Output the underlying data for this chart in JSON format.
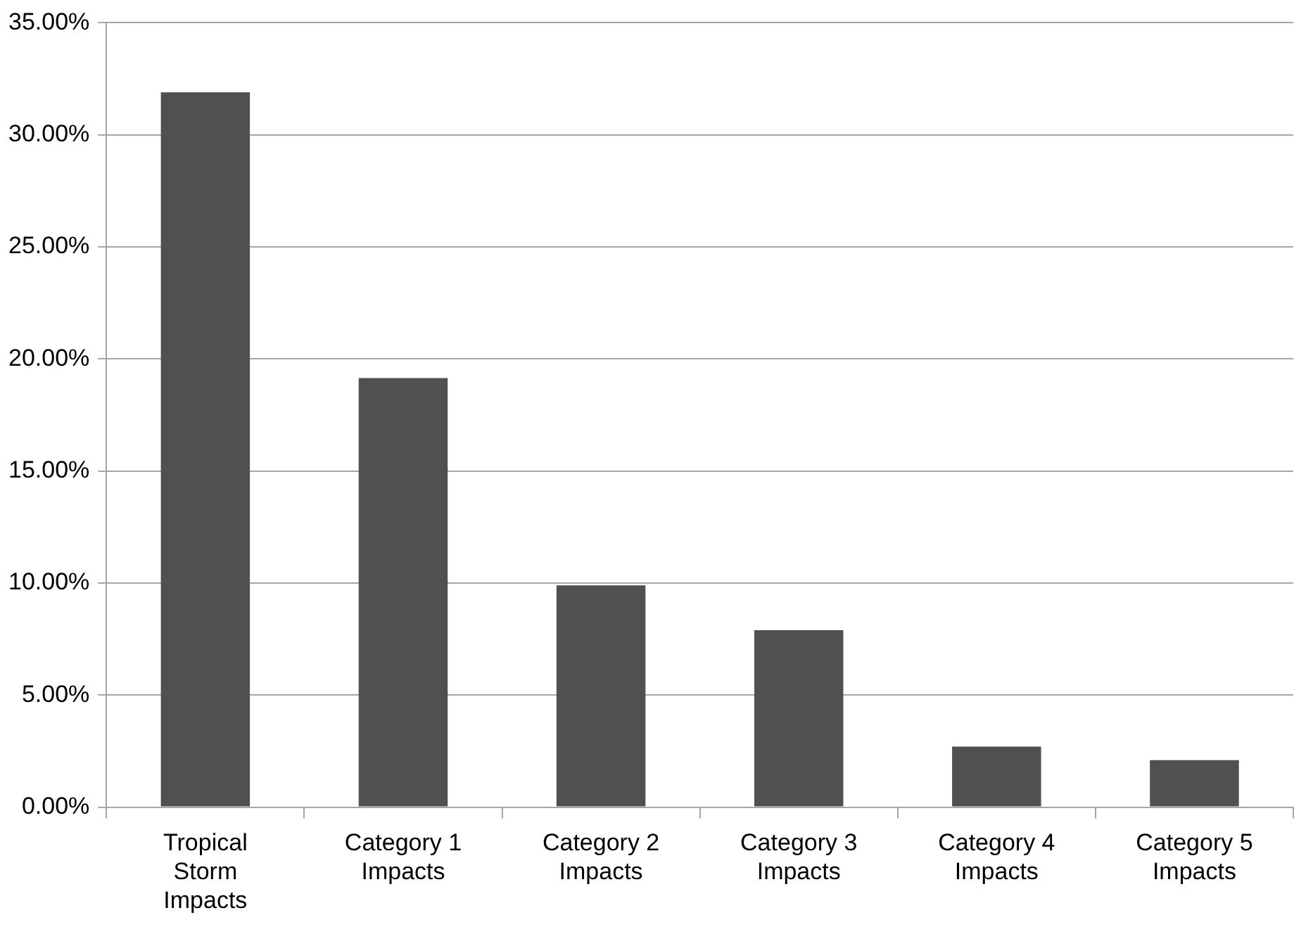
{
  "chart_data": {
    "type": "bar",
    "categories": [
      "Tropical Storm Impacts",
      "Category 1 Impacts",
      "Category 2 Impacts",
      "Category 3 Impacts",
      "Category 4 Impacts",
      "Category 5 Impacts"
    ],
    "values": [
      31.9,
      19.15,
      9.9,
      7.9,
      2.7,
      2.1
    ],
    "color": "#505050",
    "ylim": [
      0,
      35
    ],
    "yticks": [
      {
        "value": 0,
        "label": "0.00%"
      },
      {
        "value": 5,
        "label": "5.00%"
      },
      {
        "value": 10,
        "label": "10.00%"
      },
      {
        "value": 15,
        "label": "15.00%"
      },
      {
        "value": 20,
        "label": "20.00%"
      },
      {
        "value": 25,
        "label": "25.00%"
      },
      {
        "value": 30,
        "label": "30.00%"
      },
      {
        "value": 35,
        "label": "35.00%"
      }
    ],
    "grid": "y",
    "legend": false
  }
}
